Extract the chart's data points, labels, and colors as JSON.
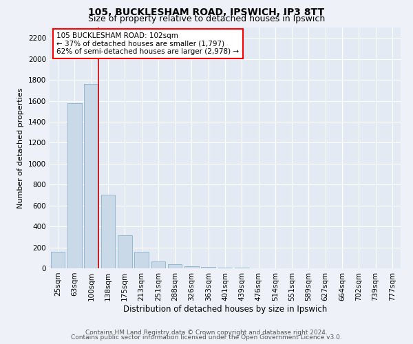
{
  "title": "105, BUCKLESHAM ROAD, IPSWICH, IP3 8TT",
  "subtitle": "Size of property relative to detached houses in Ipswich",
  "xlabel": "Distribution of detached houses by size in Ipswich",
  "ylabel": "Number of detached properties",
  "footer_line1": "Contains HM Land Registry data © Crown copyright and database right 2024.",
  "footer_line2": "Contains public sector information licensed under the Open Government Licence v3.0.",
  "categories": [
    "25sqm",
    "63sqm",
    "100sqm",
    "138sqm",
    "175sqm",
    "213sqm",
    "251sqm",
    "288sqm",
    "326sqm",
    "363sqm",
    "401sqm",
    "439sqm",
    "476sqm",
    "514sqm",
    "551sqm",
    "589sqm",
    "627sqm",
    "664sqm",
    "702sqm",
    "739sqm",
    "777sqm"
  ],
  "values": [
    155,
    1580,
    1760,
    700,
    315,
    155,
    65,
    38,
    22,
    12,
    8,
    5,
    3,
    2,
    1,
    1,
    0,
    0,
    0,
    0,
    0
  ],
  "bar_color": "#c9d9e8",
  "bar_edge_color": "#8ab4cc",
  "highlight_color": "#cc0000",
  "highlight_index": 2,
  "annotation_box_text": "105 BUCKLESHAM ROAD: 102sqm\n← 37% of detached houses are smaller (1,797)\n62% of semi-detached houses are larger (2,978) →",
  "ylim": [
    0,
    2300
  ],
  "yticks": [
    0,
    200,
    400,
    600,
    800,
    1000,
    1200,
    1400,
    1600,
    1800,
    2000,
    2200
  ],
  "bg_color": "#eef2f8",
  "plot_bg_color": "#e4eaf4",
  "grid_color": "#ffffff",
  "title_fontsize": 10,
  "subtitle_fontsize": 9,
  "xlabel_fontsize": 8.5,
  "ylabel_fontsize": 8,
  "tick_fontsize": 7.5,
  "annotation_fontsize": 7.5,
  "footer_fontsize": 6.5
}
